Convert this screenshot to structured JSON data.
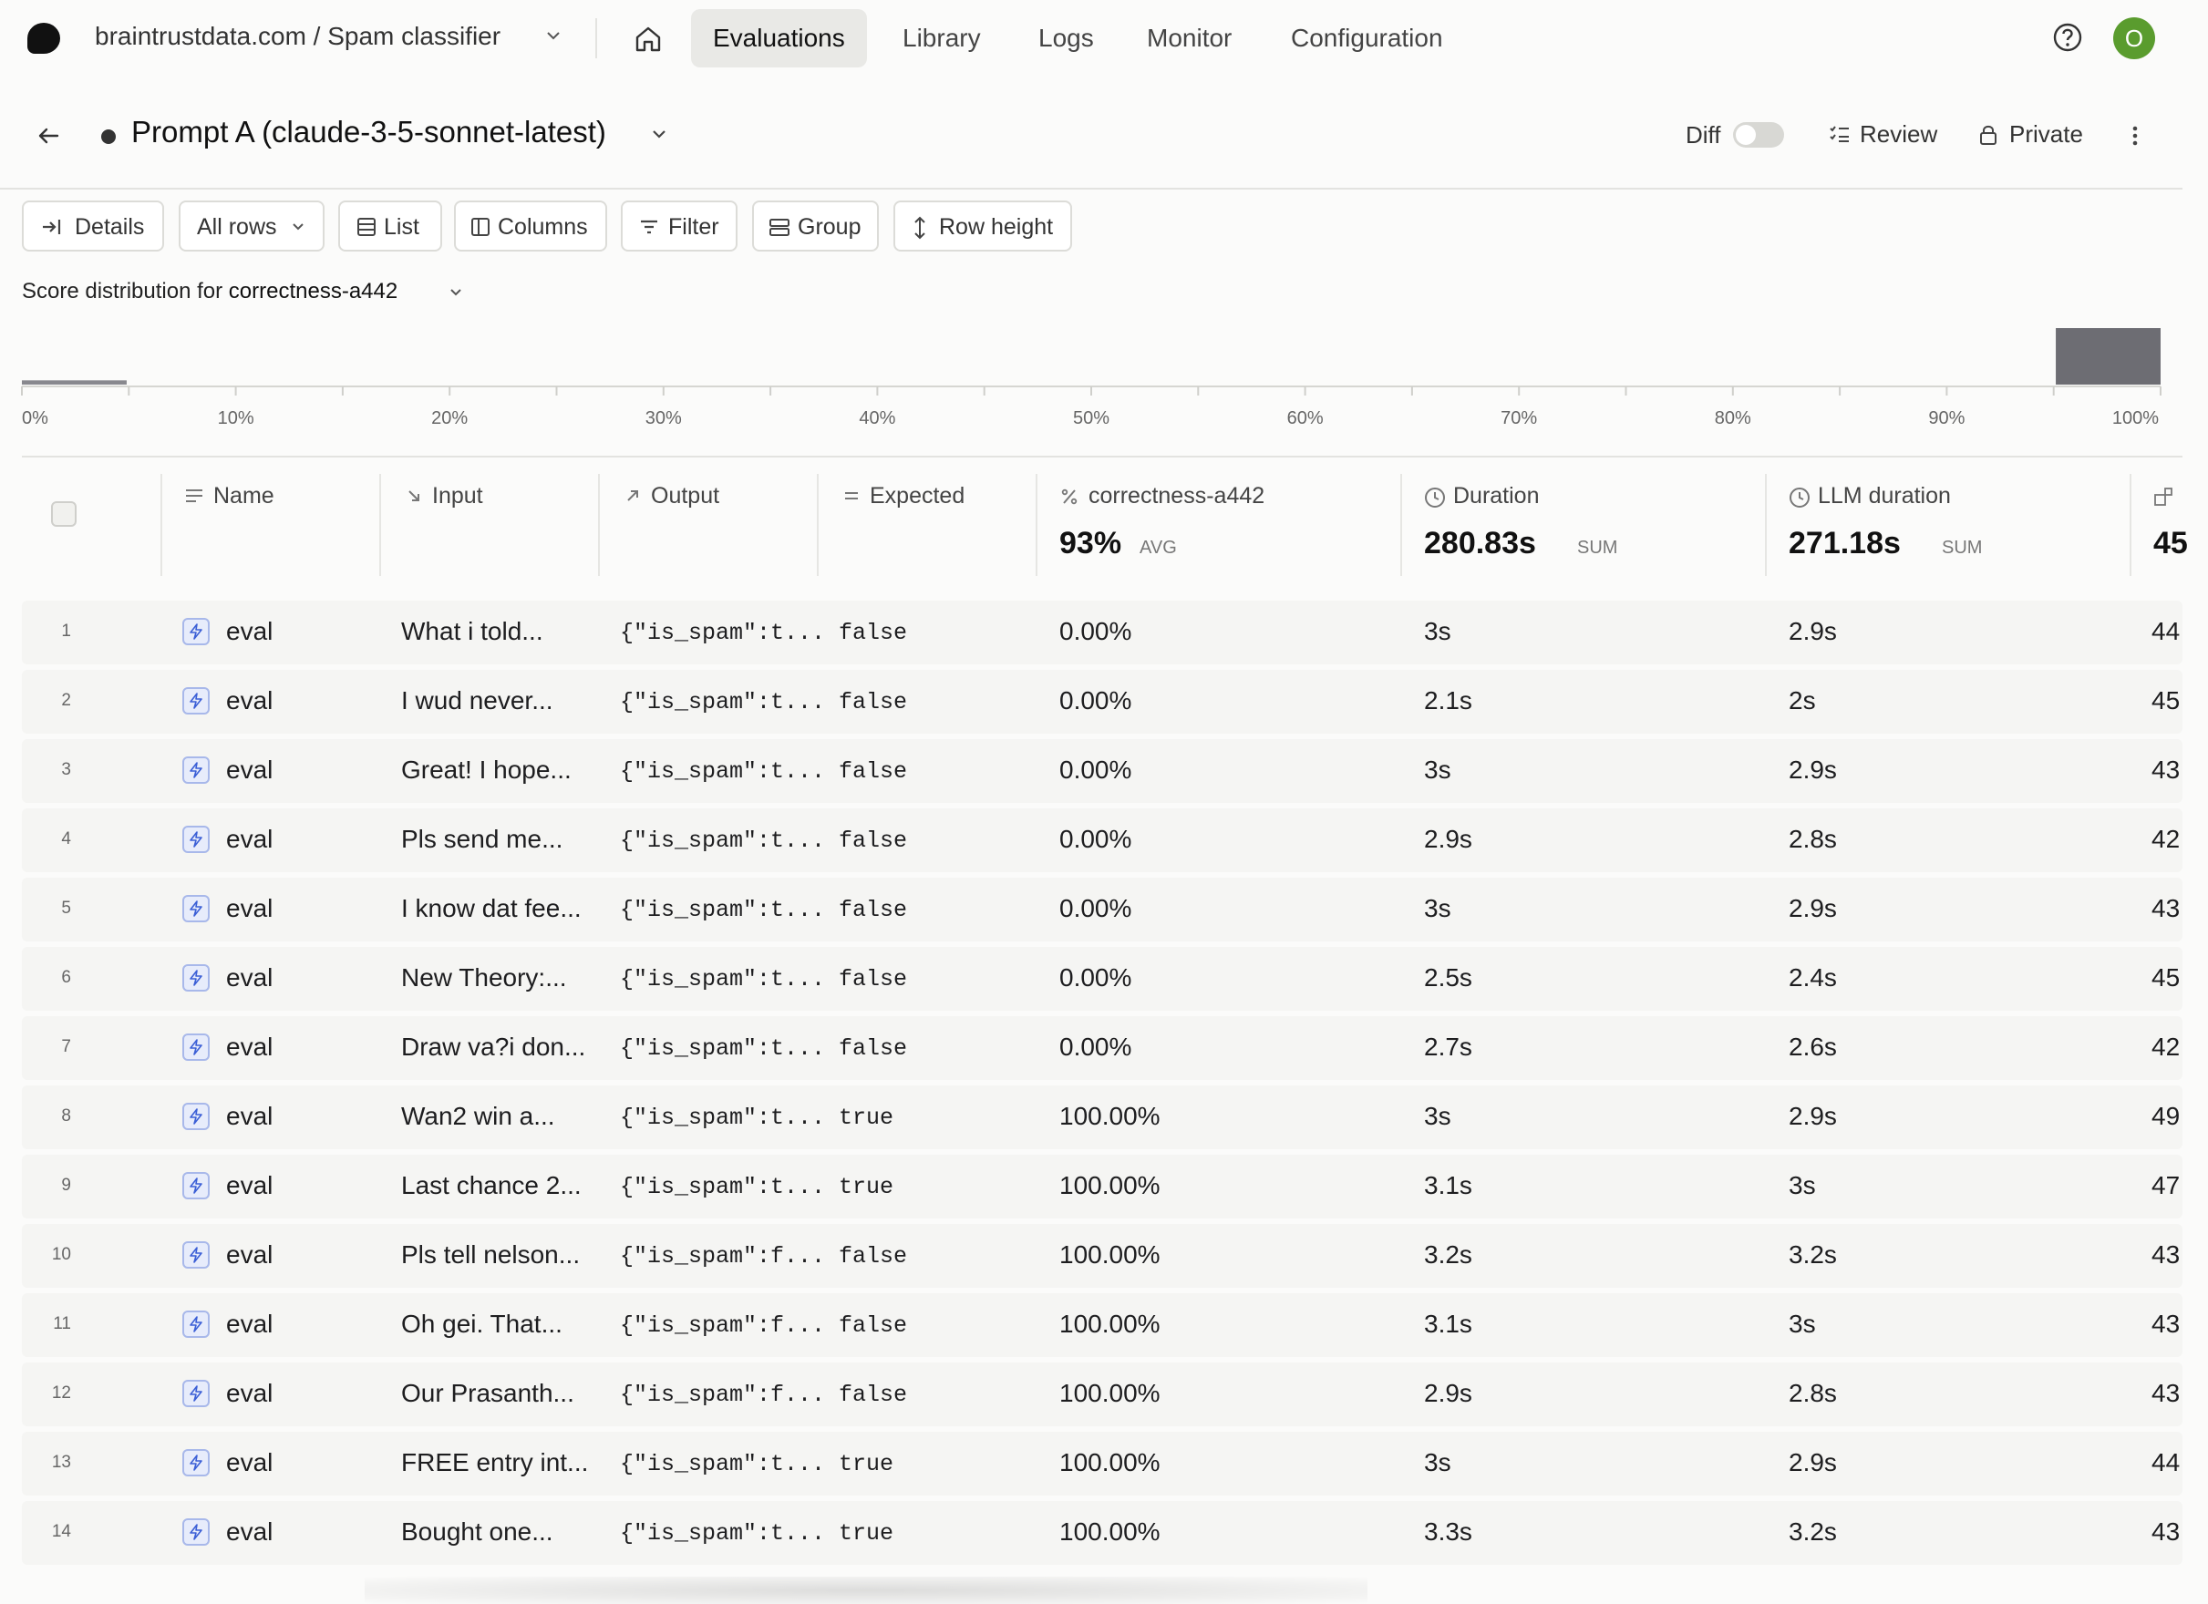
{
  "topnav": {
    "org_project": "braintrustdata.com / Spam classifier",
    "items": [
      {
        "label": "Evaluations",
        "active": true
      },
      {
        "label": "Library",
        "active": false
      },
      {
        "label": "Logs",
        "active": false
      },
      {
        "label": "Monitor",
        "active": false
      },
      {
        "label": "Configuration",
        "active": false
      }
    ],
    "avatar_initial": "O"
  },
  "experiment": {
    "title": "Prompt A (claude-3-5-sonnet-latest)",
    "diff_label": "Diff",
    "review_label": "Review",
    "private_label": "Private"
  },
  "toolbar": {
    "details": "Details",
    "all_rows": "All rows",
    "list": "List",
    "columns": "Columns",
    "filter": "Filter",
    "group": "Group",
    "row_height": "Row height"
  },
  "score_dist": {
    "prefix": "Score distribution for",
    "metric": "correctness-a442",
    "ticks": [
      "0%",
      "10%",
      "20%",
      "30%",
      "40%",
      "50%",
      "60%",
      "70%",
      "80%",
      "90%",
      "100%"
    ]
  },
  "chart_data": {
    "type": "bar",
    "categories": [
      "0%",
      "100%"
    ],
    "values": [
      7,
      93
    ],
    "xlim": [
      0,
      100
    ]
  },
  "columns": {
    "name": "Name",
    "input": "Input",
    "output": "Output",
    "expected": "Expected",
    "correctness": {
      "label": "correctness-a442",
      "value": "93%",
      "agg": "AVG"
    },
    "duration": {
      "label": "Duration",
      "value": "280.83s",
      "agg": "SUM"
    },
    "llm_duration": {
      "label": "LLM duration",
      "value": "271.18s",
      "agg": "SUM"
    },
    "extra_value": "45"
  },
  "rows": [
    {
      "idx": "1",
      "name": "eval",
      "input": "What i told...",
      "output": "{\"is_spam\":t...",
      "expected": "false",
      "score": "0.00%",
      "duration": "3s",
      "llm": "2.9s",
      "extra": "44"
    },
    {
      "idx": "2",
      "name": "eval",
      "input": "I wud never...",
      "output": "{\"is_spam\":t...",
      "expected": "false",
      "score": "0.00%",
      "duration": "2.1s",
      "llm": "2s",
      "extra": "45"
    },
    {
      "idx": "3",
      "name": "eval",
      "input": "Great! I hope...",
      "output": "{\"is_spam\":t...",
      "expected": "false",
      "score": "0.00%",
      "duration": "3s",
      "llm": "2.9s",
      "extra": "43"
    },
    {
      "idx": "4",
      "name": "eval",
      "input": "Pls send me...",
      "output": "{\"is_spam\":t...",
      "expected": "false",
      "score": "0.00%",
      "duration": "2.9s",
      "llm": "2.8s",
      "extra": "42"
    },
    {
      "idx": "5",
      "name": "eval",
      "input": "I know dat fee...",
      "output": "{\"is_spam\":t...",
      "expected": "false",
      "score": "0.00%",
      "duration": "3s",
      "llm": "2.9s",
      "extra": "43"
    },
    {
      "idx": "6",
      "name": "eval",
      "input": "New Theory:...",
      "output": "{\"is_spam\":t...",
      "expected": "false",
      "score": "0.00%",
      "duration": "2.5s",
      "llm": "2.4s",
      "extra": "45"
    },
    {
      "idx": "7",
      "name": "eval",
      "input": "Draw va?i don...",
      "output": "{\"is_spam\":t...",
      "expected": "false",
      "score": "0.00%",
      "duration": "2.7s",
      "llm": "2.6s",
      "extra": "42"
    },
    {
      "idx": "8",
      "name": "eval",
      "input": "Wan2 win a...",
      "output": "{\"is_spam\":t...",
      "expected": "true",
      "score": "100.00%",
      "duration": "3s",
      "llm": "2.9s",
      "extra": "49"
    },
    {
      "idx": "9",
      "name": "eval",
      "input": "Last chance 2...",
      "output": "{\"is_spam\":t...",
      "expected": "true",
      "score": "100.00%",
      "duration": "3.1s",
      "llm": "3s",
      "extra": "47"
    },
    {
      "idx": "10",
      "name": "eval",
      "input": "Pls tell nelson...",
      "output": "{\"is_spam\":f...",
      "expected": "false",
      "score": "100.00%",
      "duration": "3.2s",
      "llm": "3.2s",
      "extra": "43"
    },
    {
      "idx": "11",
      "name": "eval",
      "input": "Oh gei. That...",
      "output": "{\"is_spam\":f...",
      "expected": "false",
      "score": "100.00%",
      "duration": "3.1s",
      "llm": "3s",
      "extra": "43"
    },
    {
      "idx": "12",
      "name": "eval",
      "input": "Our Prasanth...",
      "output": "{\"is_spam\":f...",
      "expected": "false",
      "score": "100.00%",
      "duration": "2.9s",
      "llm": "2.8s",
      "extra": "43"
    },
    {
      "idx": "13",
      "name": "eval",
      "input": "FREE entry int...",
      "output": "{\"is_spam\":t...",
      "expected": "true",
      "score": "100.00%",
      "duration": "3s",
      "llm": "2.9s",
      "extra": "44"
    },
    {
      "idx": "14",
      "name": "eval",
      "input": "Bought one...",
      "output": "{\"is_spam\":t...",
      "expected": "true",
      "score": "100.00%",
      "duration": "3.3s",
      "llm": "3.2s",
      "extra": "43"
    }
  ]
}
